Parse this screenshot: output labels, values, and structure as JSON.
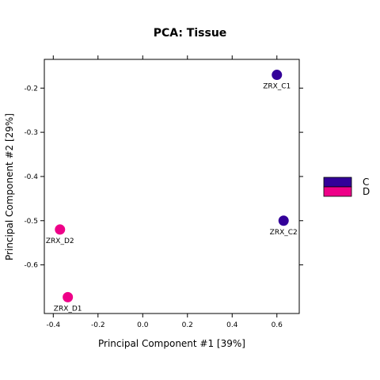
{
  "chart_data": {
    "type": "scatter",
    "title": "PCA: Tissue",
    "xlabel": "Principal Component #1 [39%]",
    "ylabel": "Principal Component #2 [29%]",
    "xlim": [
      -0.44,
      0.7
    ],
    "ylim": [
      -0.71,
      -0.135
    ],
    "xticks": [
      -0.4,
      -0.2,
      0.0,
      0.2,
      0.4,
      0.6
    ],
    "xtick_labels": [
      "-0.4",
      "-0.2",
      "0.0",
      "0.2",
      "0.4",
      "0.6"
    ],
    "yticks": [
      -0.2,
      -0.3,
      -0.4,
      -0.5,
      -0.6
    ],
    "ytick_labels": [
      "-0.2",
      "-0.3",
      "-0.4",
      "-0.5",
      "-0.6"
    ],
    "grid": false,
    "legend_position": "right",
    "series": [
      {
        "name": "C",
        "color": "#330099",
        "points": [
          {
            "label": "ZRX_C1",
            "x": 0.6,
            "y": -0.17
          },
          {
            "label": "ZRX_C2",
            "x": 0.63,
            "y": -0.5
          }
        ]
      },
      {
        "name": "D",
        "color": "#EE0088",
        "points": [
          {
            "label": "ZRX_D2",
            "x": -0.37,
            "y": -0.52
          },
          {
            "label": "ZRX_D1",
            "x": -0.335,
            "y": -0.673
          }
        ]
      }
    ]
  }
}
